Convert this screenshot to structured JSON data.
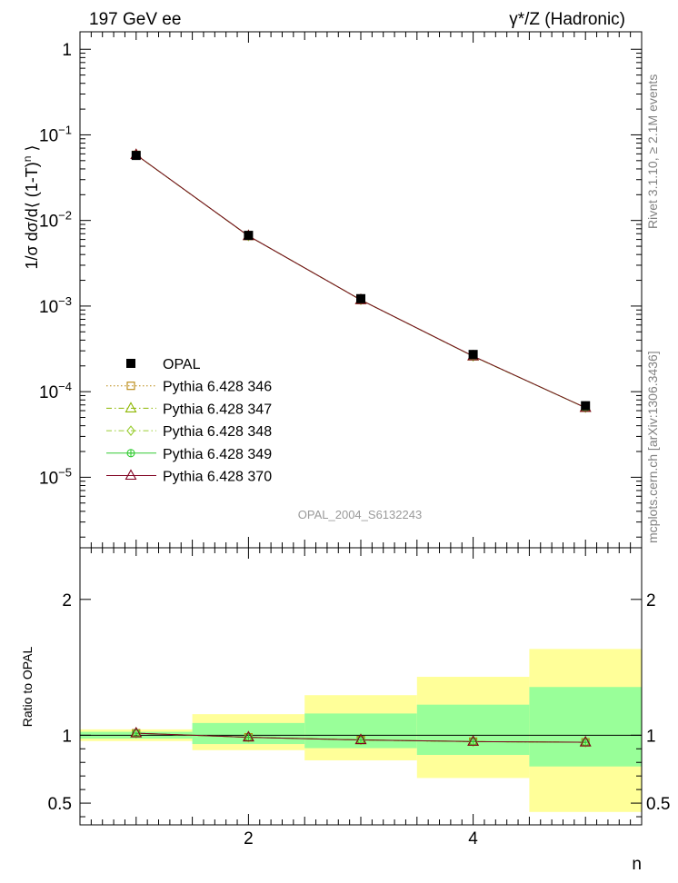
{
  "header": {
    "left": "197 GeV ee",
    "right": "γ*/Z (Hadronic)"
  },
  "side_labels": {
    "right_top": "Rivet 3.1.10, ≥ 2.1M events",
    "right_bottom": "mcplots.cern.ch [arXiv:1306.3436]"
  },
  "watermark": "OPAL_2004_S6132243",
  "chart_data": [
    {
      "type": "scatter",
      "panel": "main",
      "ylabel_parts": {
        "pre": "1/σ dσ/d⟨ (1-T)",
        "sup": "n",
        "post": " ⟩"
      },
      "xlabel": "n",
      "yscale": "log",
      "xlim": [
        0.5,
        5.5
      ],
      "ylim": [
        1.5e-06,
        1.6
      ],
      "y_ticks": [
        {
          "v": 1,
          "base": "1",
          "exp": ""
        },
        {
          "v": 0.1,
          "base": "10",
          "exp": "−1"
        },
        {
          "v": 0.01,
          "base": "10",
          "exp": "−2"
        },
        {
          "v": 0.001,
          "base": "10",
          "exp": "−3"
        },
        {
          "v": 0.0001,
          "base": "10",
          "exp": "−4"
        },
        {
          "v": 1e-05,
          "base": "10",
          "exp": "−5"
        }
      ],
      "x": [
        1,
        2,
        3,
        4,
        5
      ],
      "series": [
        {
          "name": "OPAL",
          "values": [
            0.0575,
            0.0067,
            0.00122,
            0.000272,
            6.85e-05
          ],
          "color": "#000000",
          "marker": "square-filled",
          "line": "none"
        },
        {
          "name": "Pythia 6.428 346",
          "values": [
            0.0585,
            0.0066,
            0.00118,
            0.00026,
            6.5e-05
          ],
          "color": "#b8860b",
          "marker": "square-open",
          "line": "dotted"
        },
        {
          "name": "Pythia 6.428 347",
          "values": [
            0.0585,
            0.0066,
            0.00118,
            0.000259,
            6.5e-05
          ],
          "color": "#8db600",
          "marker": "triangle-open",
          "line": "dashdot"
        },
        {
          "name": "Pythia 6.428 348",
          "values": [
            0.0585,
            0.0066,
            0.00118,
            0.000259,
            6.5e-05
          ],
          "color": "#9acd32",
          "marker": "diamond-open",
          "line": "dashdot"
        },
        {
          "name": "Pythia 6.428 349",
          "values": [
            0.0585,
            0.0066,
            0.00118,
            0.000259,
            6.5e-05
          ],
          "color": "#33cc33",
          "marker": "circle-cross",
          "line": "solid"
        },
        {
          "name": "Pythia 6.428 370",
          "values": [
            0.0585,
            0.0066,
            0.00118,
            0.00026,
            6.5e-05
          ],
          "color": "#800020",
          "marker": "triangle-open",
          "line": "solid"
        }
      ],
      "legend_placement": "bottom-left"
    },
    {
      "type": "line",
      "panel": "ratio",
      "ylabel": "Ratio to OPAL",
      "xlabel": "n",
      "xlim": [
        0.5,
        5.5
      ],
      "ylim": [
        0.34,
        2.38
      ],
      "y_ticks": [
        0.5,
        1,
        2
      ],
      "x_ticks": [
        2,
        4
      ],
      "x": [
        1,
        2,
        3,
        4,
        5
      ],
      "bins": [
        [
          0.5,
          1.5
        ],
        [
          1.5,
          2.5
        ],
        [
          2.5,
          3.5
        ],
        [
          3.5,
          4.5
        ],
        [
          4.5,
          5.5
        ]
      ],
      "band_outer": [
        [
          0.957,
          1.043
        ],
        [
          0.89,
          1.155
        ],
        [
          0.815,
          1.295
        ],
        [
          0.685,
          1.43
        ],
        [
          0.435,
          1.635
        ]
      ],
      "band_inner": [
        [
          0.975,
          1.025
        ],
        [
          0.935,
          1.09
        ],
        [
          0.905,
          1.16
        ],
        [
          0.855,
          1.225
        ],
        [
          0.77,
          1.355
        ]
      ],
      "ratio_values": [
        1.015,
        0.985,
        0.965,
        0.953,
        0.948
      ]
    }
  ]
}
